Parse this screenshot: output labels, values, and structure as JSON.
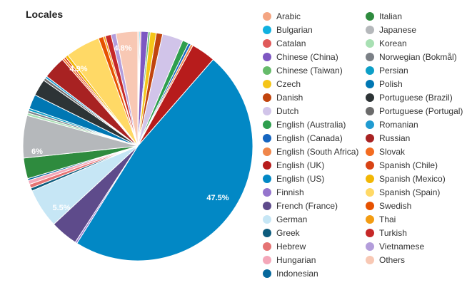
{
  "chart_data": {
    "type": "pie",
    "title": "Locales",
    "legend_position": "right",
    "slices": [
      {
        "name": "Arabic",
        "value": 0.0,
        "color": "#f4a582"
      },
      {
        "name": "Bulgarian",
        "value": 0.0,
        "color": "#11b1e0"
      },
      {
        "name": "Catalan",
        "value": 0.0,
        "color": "#e05a5a"
      },
      {
        "name": "Chinese (China)",
        "value": 0.0,
        "color": "#7e57c2"
      },
      {
        "name": "Chinese (Taiwan)",
        "value": 0.0,
        "color": "#66bb6a"
      },
      {
        "name": "Czech",
        "value": 0.0,
        "color": "#f5c518"
      },
      {
        "name": "Danish",
        "value": 0.0,
        "color": "#c1440e"
      },
      {
        "name": "Dutch",
        "value": 0.0,
        "color": "#d1c4e9"
      },
      {
        "name": "English (Australia)",
        "value": 0.0,
        "color": "#2e9e4e"
      },
      {
        "name": "English (Canada)",
        "value": 0.0,
        "color": "#1565c0"
      },
      {
        "name": "English (South Africa)",
        "value": 0.0,
        "color": "#f0864a"
      },
      {
        "name": "English (UK)",
        "value": 0.0,
        "color": "#b71c1c"
      },
      {
        "name": "English (US)",
        "value": 47.5,
        "color": "#0288c5"
      },
      {
        "name": "Finnish",
        "value": 0.0,
        "color": "#9575cd"
      },
      {
        "name": "French (France)",
        "value": 0.0,
        "color": "#5e4b8b"
      },
      {
        "name": "German",
        "value": 5.5,
        "color": "#c6e6f5"
      },
      {
        "name": "Greek",
        "value": 0.0,
        "color": "#0d5c7d"
      },
      {
        "name": "Hebrew",
        "value": 0.0,
        "color": "#e57373"
      },
      {
        "name": "Hungarian",
        "value": 0.0,
        "color": "#f4a7b9"
      },
      {
        "name": "Indonesian",
        "value": 0.0,
        "color": "#06689c"
      },
      {
        "name": "Italian",
        "value": 0.0,
        "color": "#2e8b3e"
      },
      {
        "name": "Japanese",
        "value": 6.0,
        "color": "#b5b8bb"
      },
      {
        "name": "Korean",
        "value": 0.0,
        "color": "#a8e0b3"
      },
      {
        "name": "Norwegian (Bokmål)",
        "value": 0.0,
        "color": "#7b8086"
      },
      {
        "name": "Persian",
        "value": 0.0,
        "color": "#0d9fc7"
      },
      {
        "name": "Polish",
        "value": 0.0,
        "color": "#0077b3"
      },
      {
        "name": "Portuguese (Brazil)",
        "value": 0.0,
        "color": "#2d3436"
      },
      {
        "name": "Portuguese (Portugal)",
        "value": 0.0,
        "color": "#6b6b6b"
      },
      {
        "name": "Romanian",
        "value": 0.0,
        "color": "#1f9bd1"
      },
      {
        "name": "Russian",
        "value": 0.0,
        "color": "#a82222"
      },
      {
        "name": "Slovak",
        "value": 0.0,
        "color": "#f36c21"
      },
      {
        "name": "Spanish (Chile)",
        "value": 0.0,
        "color": "#d84315"
      },
      {
        "name": "Spanish (Mexico)",
        "value": 0.0,
        "color": "#f2b705"
      },
      {
        "name": "Spanish (Spain)",
        "value": 4.9,
        "color": "#ffd966"
      },
      {
        "name": "Swedish",
        "value": 0.0,
        "color": "#e65100"
      },
      {
        "name": "Thai",
        "value": 0.0,
        "color": "#f39c12"
      },
      {
        "name": "Turkish",
        "value": 0.0,
        "color": "#c62828"
      },
      {
        "name": "Vietnamese",
        "value": 0.0,
        "color": "#b39ddb"
      },
      {
        "name": "Others",
        "value": 4.8,
        "color": "#f8c8b4"
      }
    ],
    "data_labels": [
      "47.5%",
      "5.5%",
      "6%",
      "4.9%",
      "4.8%"
    ]
  }
}
